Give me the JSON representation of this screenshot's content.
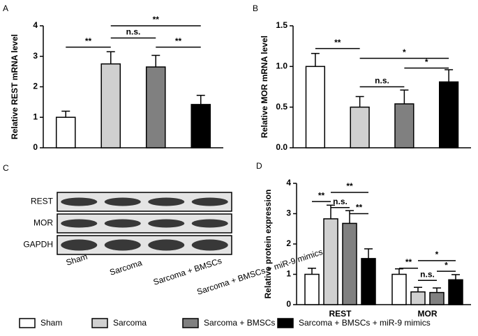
{
  "chart_data": [
    {
      "type": "bar",
      "panel": "A",
      "ylabel": "Relative REST mRNA level",
      "values": [
        1.0,
        2.75,
        2.65,
        1.42
      ],
      "errors": [
        0.2,
        0.4,
        0.38,
        0.3
      ],
      "colors": [
        "#ffffff",
        "#d0d0d0",
        "#808080",
        "#000000"
      ],
      "ylim": [
        0,
        4
      ],
      "yticks": [
        0,
        1,
        2,
        3,
        4
      ],
      "brackets": [
        {
          "label": "**",
          "between": [
            0,
            1
          ],
          "y": 3.3
        },
        {
          "label": "n.s.",
          "between": [
            1,
            2
          ],
          "y": 3.6
        },
        {
          "label": "**",
          "between": [
            1,
            3
          ],
          "y": 4.0
        },
        {
          "label": "**",
          "between": [
            2,
            3
          ],
          "y": 3.3
        }
      ]
    },
    {
      "type": "bar",
      "panel": "B",
      "ylabel": "Relative MOR mRNA level",
      "values": [
        1.0,
        0.5,
        0.54,
        0.81
      ],
      "errors": [
        0.16,
        0.13,
        0.17,
        0.15
      ],
      "colors": [
        "#ffffff",
        "#d0d0d0",
        "#808080",
        "#000000"
      ],
      "ylim": [
        0,
        1.5
      ],
      "yticks": [
        {
          "value": 0,
          "label": "0.0"
        },
        {
          "value": 0.5,
          "label": "0.5"
        },
        {
          "value": 1,
          "label": "1.0"
        },
        {
          "value": 1.5,
          "label": "1.5"
        }
      ],
      "brackets": [
        {
          "label": "**",
          "between": [
            0,
            1
          ],
          "y": 1.22
        },
        {
          "label": "*",
          "between": [
            1,
            3
          ],
          "y": 1.1
        },
        {
          "label": "n.s.",
          "between": [
            1,
            2
          ],
          "y": 0.75
        },
        {
          "label": "*",
          "between": [
            2,
            3
          ],
          "y": 0.98
        }
      ]
    },
    {
      "type": "grouped-bar",
      "panel": "D",
      "ylabel": "Relative protein  expression",
      "categories": [
        "REST",
        "MOR"
      ],
      "series": [
        {
          "name": "Sham",
          "color": "#ffffff",
          "values": [
            1.0,
            1.0
          ],
          "errors": [
            0.2,
            0.18
          ]
        },
        {
          "name": "Sarcoma",
          "color": "#d0d0d0",
          "values": [
            2.83,
            0.42
          ],
          "errors": [
            0.45,
            0.15
          ]
        },
        {
          "name": "Sarcoma + BMSCs",
          "color": "#808080",
          "values": [
            2.68,
            0.4
          ],
          "errors": [
            0.42,
            0.15
          ]
        },
        {
          "name": "Sarcoma + BMSCs + miR-9 mimics",
          "color": "#000000",
          "values": [
            1.52,
            0.82
          ],
          "errors": [
            0.32,
            0.17
          ]
        }
      ],
      "ylim": [
        0,
        4
      ],
      "yticks": [
        0,
        1,
        2,
        3,
        4
      ],
      "brackets": [
        {
          "label": "**",
          "group": 0,
          "between": [
            0,
            1
          ],
          "y": 3.4
        },
        {
          "label": "n.s.",
          "group": 0,
          "between": [
            1,
            2
          ],
          "y": 3.2
        },
        {
          "label": "**",
          "group": 0,
          "between": [
            1,
            3
          ],
          "y": 3.7
        },
        {
          "label": "**",
          "group": 0,
          "between": [
            2,
            3
          ],
          "y": 3.0
        },
        {
          "label": "**",
          "group": 1,
          "between": [
            0,
            1
          ],
          "y": 1.2
        },
        {
          "label": "n.s.",
          "group": 1,
          "between": [
            1,
            2
          ],
          "y": 0.8
        },
        {
          "label": "*",
          "group": 1,
          "between": [
            1,
            3
          ],
          "y": 1.45
        },
        {
          "label": "*",
          "group": 1,
          "between": [
            2,
            3
          ],
          "y": 1.1
        }
      ]
    }
  ],
  "blot": {
    "panel": "C",
    "rows": [
      "REST",
      "MOR",
      "GAPDH"
    ],
    "lanes": [
      "Sham",
      "Sarcoma",
      "Sarcoma + BMSCs",
      "Sarcoma + BMSCs + miR-9 mimics"
    ]
  }
}
